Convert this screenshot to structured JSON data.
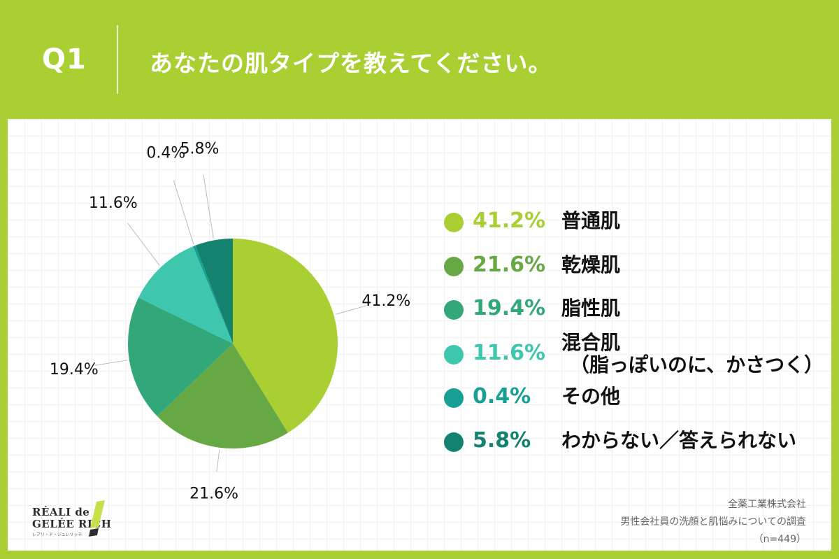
{
  "header": {
    "q_label": "Q1",
    "question": "あなたの肌タイプを教えてください。"
  },
  "colors": {
    "background": "#a9cf33",
    "card": "#ffffff"
  },
  "chart_data": {
    "type": "pie",
    "title": "",
    "categories": [
      "普通肌",
      "乾燥肌",
      "脂性肌",
      "混合肌（脂っぽいのに、かさつく）",
      "その他",
      "わからない／答えられない"
    ],
    "values": [
      41.2,
      21.6,
      19.4,
      11.6,
      0.4,
      5.8
    ],
    "value_labels": [
      "41.2%",
      "21.6%",
      "19.4%",
      "11.6%",
      "0.4%",
      "5.8%"
    ],
    "colors": [
      "#a9cf33",
      "#66a843",
      "#31a77a",
      "#3fc7ae",
      "#17a093",
      "#13826f"
    ],
    "start_angle": "12 o'clock",
    "direction": "clockwise",
    "legend_placement": "right"
  },
  "legend": [
    {
      "pct": "41.2%",
      "label": "普通肌",
      "color": "#a9cf33"
    },
    {
      "pct": "21.6%",
      "label": "乾燥肌",
      "color": "#66a843"
    },
    {
      "pct": "19.4%",
      "label": "脂性肌",
      "color": "#31a77a"
    },
    {
      "pct": "11.6%",
      "label": "混合肌",
      "sublabel": "（脂っぽいのに、かさつく）",
      "color": "#3fc7ae"
    },
    {
      "pct": "0.4%",
      "label": "その他",
      "color": "#17a093"
    },
    {
      "pct": "5.8%",
      "label": "わからない／答えられない",
      "color": "#13826f"
    }
  ],
  "source": {
    "company": "全薬工業株式会社",
    "survey": "男性会社員の洗顔と肌悩みについての調査",
    "n": "（n=449）"
  },
  "logo": {
    "line1": "RÉALI de",
    "line2": "GELÉE RICH",
    "sub": "レアリ・ド・ジュレリッチ",
    "colors": [
      "#c6e04a",
      "#2d2d2d"
    ]
  }
}
